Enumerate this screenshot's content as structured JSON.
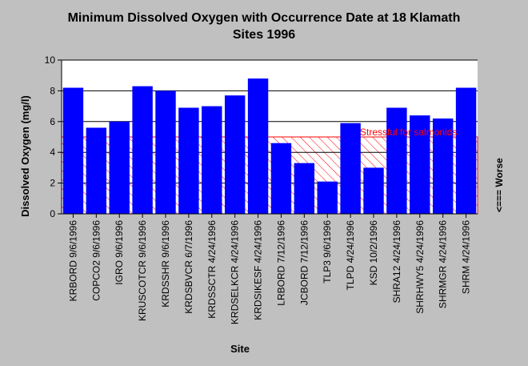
{
  "chart_data": {
    "type": "bar",
    "title": "Minimum Dissolved Oxygen with Occurrence Date at 18 Klamath Sites 1996",
    "title_lines": [
      "Minimum Dissolved Oxygen with Occurrence Date at 18 Klamath",
      "Sites 1996"
    ],
    "xlabel": "Site",
    "ylabel": "Dissolved Oxygen (mg/l)",
    "ylim": [
      0,
      10
    ],
    "yticks": [
      "0",
      "2",
      "4",
      "6",
      "8",
      "10"
    ],
    "grid": true,
    "categories": [
      "KRBORD 9/6/1996",
      "COPCO2 9/6/1996",
      "IGRO 9/6/1996",
      "KRUSCOTCR 9/6/1996",
      "KRDSSHR 9/6/1996",
      "KRDSBVCR 6/7/1996",
      "KRDSSCTR 4/24/1996",
      "KRDSELKCR 4/24/1996",
      "KRDSIKESF 4/24/1996",
      "LRBORD 7/12/1996",
      "JCBORD 7/12/1996",
      "TLP3 9/6/1996",
      "TLPD 4/24/1996",
      "KSD 10/2/1996",
      "SHRA12 4/24/1996",
      "SHRHWY5 4/24/1996",
      "SHRMGR 4/24/1996",
      "SHRM 4/24/1996"
    ],
    "values": [
      8.2,
      5.6,
      6.0,
      8.3,
      8.0,
      6.9,
      7.0,
      7.7,
      8.8,
      4.6,
      3.3,
      2.1,
      5.9,
      3.0,
      6.9,
      6.4,
      6.2,
      8.2
    ],
    "threshold": {
      "value": 5,
      "label": "Stressful for salmonids"
    },
    "side_annotation": "<=== Worse",
    "colors": {
      "bar": "#0000ff",
      "threshold": "#ff0000",
      "background": "#c0c0c0",
      "plot": "#ffffff"
    }
  }
}
